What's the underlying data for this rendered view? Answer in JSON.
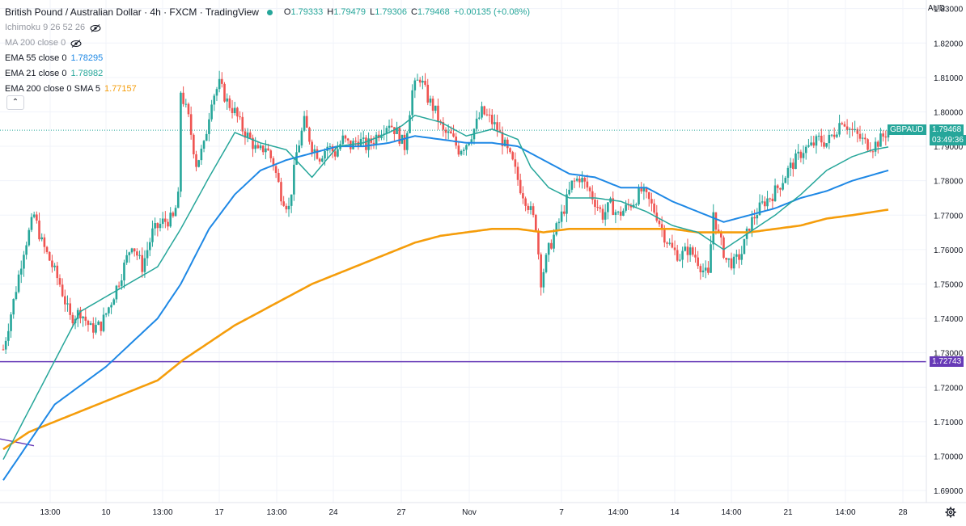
{
  "header": {
    "title": "British Pound / Australian Dollar · 4h · FXCM · TradingView",
    "ohlc": [
      {
        "key": "O",
        "value": "1.79333"
      },
      {
        "key": "H",
        "value": "1.79479"
      },
      {
        "key": "L",
        "value": "1.79306"
      },
      {
        "key": "C",
        "value": "1.79468"
      }
    ],
    "change": "+0.00135 (+0.08%)"
  },
  "indicators": [
    {
      "label": "Ichimoku 9 26 52 26",
      "value": "",
      "hidden": true
    },
    {
      "label": "MA 200 close 0",
      "value": "",
      "hidden": true
    },
    {
      "label": "EMA 55 close 0",
      "value": "1.78295",
      "color": "#1e88e5"
    },
    {
      "label": "EMA 21 close 0",
      "value": "1.78982",
      "color": "#26a69a"
    },
    {
      "label": "EMA 200 close 0 SMA 5",
      "value": "1.77157",
      "color": "#f59d0b"
    }
  ],
  "collapse_icon": "chevron-up-icon",
  "currency": "AUD",
  "tags": {
    "symbol": "GBPAUD",
    "last_price": "1.79468",
    "countdown": "03:49:36",
    "hline_price": "1.72743"
  },
  "colors": {
    "up": "#26a69a",
    "down": "#ef5350",
    "ema55": "#1e88e5",
    "ema21": "#26a69a",
    "ema200": "#f59d0b",
    "hline": "#673ab7"
  },
  "chart_data": {
    "type": "candlestick",
    "title": "British Pound / Australian Dollar · 4h · FXCM · TradingView",
    "y_axis": {
      "ticks": [
        "1.83000",
        "1.82000",
        "1.81000",
        "1.80000",
        "1.79000",
        "1.78000",
        "1.77000",
        "1.76000",
        "1.75000",
        "1.74000",
        "1.73000",
        "1.72000",
        "1.71000",
        "1.70000",
        "1.69000"
      ],
      "range": [
        1.6865,
        1.8325
      ],
      "position": "right"
    },
    "x_axis": {
      "ticks": [
        "13:00",
        "10",
        "13:00",
        "17",
        "13:00",
        "24",
        "27",
        "Nov",
        "7",
        "14:00",
        "14",
        "14:00",
        "21",
        "14:00",
        "28"
      ]
    },
    "last_price": 1.79468,
    "horizontal_line": 1.72743,
    "trendline": [
      [
        1.705,
        1.703
      ]
    ],
    "price_path": [
      [
        0,
        1.731
      ],
      [
        4,
        1.745
      ],
      [
        8,
        1.76
      ],
      [
        12,
        1.77
      ],
      [
        15,
        1.762
      ],
      [
        18,
        1.757
      ],
      [
        22,
        1.75
      ],
      [
        26,
        1.74
      ],
      [
        30,
        1.742
      ],
      [
        34,
        1.737
      ],
      [
        38,
        1.738
      ],
      [
        42,
        1.745
      ],
      [
        46,
        1.753
      ],
      [
        50,
        1.762
      ],
      [
        54,
        1.755
      ],
      [
        58,
        1.765
      ],
      [
        62,
        1.768
      ],
      [
        66,
        1.769
      ],
      [
        68,
        1.775
      ],
      [
        69,
        1.806
      ],
      [
        72,
        1.798
      ],
      [
        75,
        1.785
      ],
      [
        78,
        1.79
      ],
      [
        81,
        1.804
      ],
      [
        84,
        1.808
      ],
      [
        87,
        1.803
      ],
      [
        90,
        1.8
      ],
      [
        93,
        1.795
      ],
      [
        96,
        1.792
      ],
      [
        99,
        1.788
      ],
      [
        102,
        1.79
      ],
      [
        105,
        1.785
      ],
      [
        108,
        1.776
      ],
      [
        111,
        1.772
      ],
      [
        114,
        1.788
      ],
      [
        117,
        1.797
      ],
      [
        120,
        1.79
      ],
      [
        123,
        1.787
      ],
      [
        126,
        1.79
      ],
      [
        129,
        1.788
      ],
      [
        132,
        1.792
      ],
      [
        135,
        1.79
      ],
      [
        138,
        1.792
      ],
      [
        141,
        1.79
      ],
      [
        144,
        1.792
      ],
      [
        147,
        1.795
      ],
      [
        150,
        1.797
      ],
      [
        153,
        1.794
      ],
      [
        156,
        1.79
      ],
      [
        159,
        1.806
      ],
      [
        162,
        1.81
      ],
      [
        165,
        1.804
      ],
      [
        168,
        1.8
      ],
      [
        171,
        1.794
      ],
      [
        174,
        1.793
      ],
      [
        177,
        1.789
      ],
      [
        180,
        1.791
      ],
      [
        183,
        1.795
      ],
      [
        186,
        1.8
      ],
      [
        189,
        1.798
      ],
      [
        192,
        1.795
      ],
      [
        195,
        1.79
      ],
      [
        198,
        1.785
      ],
      [
        201,
        1.778
      ],
      [
        204,
        1.773
      ],
      [
        207,
        1.767
      ],
      [
        209,
        1.751
      ],
      [
        212,
        1.76
      ],
      [
        215,
        1.766
      ],
      [
        218,
        1.772
      ],
      [
        221,
        1.779
      ],
      [
        224,
        1.781
      ],
      [
        227,
        1.778
      ],
      [
        230,
        1.774
      ],
      [
        233,
        1.77
      ],
      [
        236,
        1.773
      ],
      [
        239,
        1.77
      ],
      [
        242,
        1.772
      ],
      [
        245,
        1.774
      ],
      [
        248,
        1.777
      ],
      [
        251,
        1.774
      ],
      [
        254,
        1.77
      ],
      [
        257,
        1.764
      ],
      [
        260,
        1.76
      ],
      [
        263,
        1.758
      ],
      [
        266,
        1.76
      ],
      [
        269,
        1.758
      ],
      [
        272,
        1.754
      ],
      [
        274,
        1.752
      ],
      [
        276,
        1.771
      ],
      [
        278,
        1.764
      ],
      [
        281,
        1.757
      ],
      [
        284,
        1.756
      ],
      [
        287,
        1.759
      ],
      [
        290,
        1.767
      ],
      [
        293,
        1.771
      ],
      [
        296,
        1.774
      ],
      [
        299,
        1.776
      ],
      [
        302,
        1.779
      ],
      [
        305,
        1.783
      ],
      [
        308,
        1.786
      ],
      [
        311,
        1.789
      ],
      [
        314,
        1.79
      ],
      [
        317,
        1.792
      ],
      [
        320,
        1.791
      ],
      [
        323,
        1.794
      ],
      [
        326,
        1.798
      ],
      [
        329,
        1.795
      ],
      [
        332,
        1.793
      ],
      [
        335,
        1.791
      ],
      [
        338,
        1.79
      ],
      [
        341,
        1.792
      ],
      [
        344,
        1.7947
      ]
    ],
    "ema21": [
      [
        0,
        1.699
      ],
      [
        30,
        1.742
      ],
      [
        60,
        1.755
      ],
      [
        69,
        1.766
      ],
      [
        80,
        1.781
      ],
      [
        90,
        1.794
      ],
      [
        100,
        1.791
      ],
      [
        110,
        1.789
      ],
      [
        120,
        1.781
      ],
      [
        130,
        1.79
      ],
      [
        140,
        1.791
      ],
      [
        150,
        1.794
      ],
      [
        155,
        1.796
      ],
      [
        160,
        1.799
      ],
      [
        170,
        1.797
      ],
      [
        180,
        1.793
      ],
      [
        190,
        1.795
      ],
      [
        200,
        1.792
      ],
      [
        205,
        1.784
      ],
      [
        212,
        1.778
      ],
      [
        220,
        1.775
      ],
      [
        230,
        1.775
      ],
      [
        240,
        1.774
      ],
      [
        250,
        1.771
      ],
      [
        260,
        1.767
      ],
      [
        270,
        1.765
      ],
      [
        280,
        1.76
      ],
      [
        290,
        1.765
      ],
      [
        300,
        1.77
      ],
      [
        310,
        1.776
      ],
      [
        320,
        1.783
      ],
      [
        330,
        1.787
      ],
      [
        338,
        1.789
      ],
      [
        344,
        1.7898
      ]
    ],
    "ema55": [
      [
        0,
        1.693
      ],
      [
        20,
        1.715
      ],
      [
        40,
        1.726
      ],
      [
        50,
        1.733
      ],
      [
        60,
        1.74
      ],
      [
        69,
        1.75
      ],
      [
        80,
        1.766
      ],
      [
        90,
        1.776
      ],
      [
        100,
        1.783
      ],
      [
        110,
        1.786
      ],
      [
        120,
        1.788
      ],
      [
        130,
        1.79
      ],
      [
        140,
        1.79
      ],
      [
        150,
        1.791
      ],
      [
        160,
        1.793
      ],
      [
        170,
        1.792
      ],
      [
        180,
        1.791
      ],
      [
        190,
        1.791
      ],
      [
        200,
        1.79
      ],
      [
        210,
        1.786
      ],
      [
        220,
        1.782
      ],
      [
        230,
        1.781
      ],
      [
        240,
        1.778
      ],
      [
        250,
        1.778
      ],
      [
        260,
        1.774
      ],
      [
        270,
        1.771
      ],
      [
        280,
        1.768
      ],
      [
        290,
        1.77
      ],
      [
        300,
        1.772
      ],
      [
        310,
        1.775
      ],
      [
        320,
        1.777
      ],
      [
        330,
        1.78
      ],
      [
        344,
        1.783
      ]
    ],
    "ema200": [
      [
        0,
        1.702
      ],
      [
        10,
        1.707
      ],
      [
        20,
        1.71
      ],
      [
        30,
        1.713
      ],
      [
        40,
        1.716
      ],
      [
        50,
        1.719
      ],
      [
        60,
        1.722
      ],
      [
        70,
        1.728
      ],
      [
        80,
        1.733
      ],
      [
        90,
        1.738
      ],
      [
        100,
        1.742
      ],
      [
        110,
        1.746
      ],
      [
        120,
        1.75
      ],
      [
        130,
        1.753
      ],
      [
        140,
        1.756
      ],
      [
        150,
        1.759
      ],
      [
        160,
        1.762
      ],
      [
        170,
        1.764
      ],
      [
        180,
        1.765
      ],
      [
        190,
        1.766
      ],
      [
        200,
        1.766
      ],
      [
        210,
        1.765
      ],
      [
        220,
        1.766
      ],
      [
        230,
        1.766
      ],
      [
        240,
        1.766
      ],
      [
        250,
        1.766
      ],
      [
        260,
        1.766
      ],
      [
        270,
        1.765
      ],
      [
        280,
        1.765
      ],
      [
        290,
        1.765
      ],
      [
        300,
        1.766
      ],
      [
        310,
        1.767
      ],
      [
        320,
        1.769
      ],
      [
        330,
        1.77
      ],
      [
        344,
        1.7716
      ]
    ]
  }
}
